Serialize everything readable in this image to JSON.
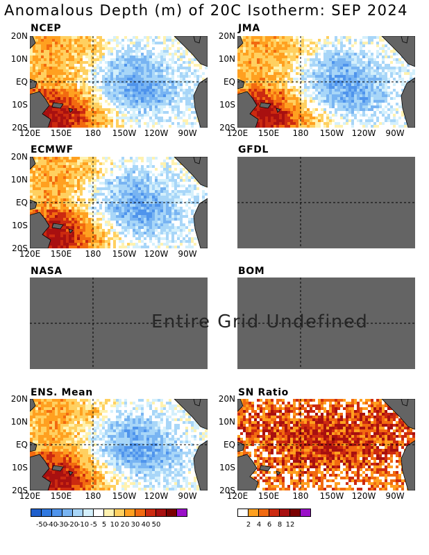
{
  "title": "Anomalous Depth (m) of 20C Isotherm: SEP 2024",
  "undefined_message": "Entire Grid Undefined",
  "lat_labels": [
    "20N",
    "10N",
    "EQ",
    "10S",
    "20S"
  ],
  "lon_labels": [
    "120E",
    "150E",
    "180",
    "150W",
    "120W",
    "90W"
  ],
  "panels": [
    {
      "name": "NCEP",
      "defined": true
    },
    {
      "name": "JMA",
      "defined": true
    },
    {
      "name": "ECMWF",
      "defined": true
    },
    {
      "name": "GFDL",
      "defined": false
    },
    {
      "name": "NASA",
      "defined": false
    },
    {
      "name": "BOM",
      "defined": false
    },
    {
      "name": "ENS. Mean",
      "defined": true
    },
    {
      "name": "SN Ratio",
      "defined": true
    }
  ],
  "anomaly_colorbar": {
    "colors": [
      "#1f5fcc",
      "#2f78e0",
      "#4f94ec",
      "#78b4f2",
      "#a8d6f8",
      "#d4f0fc",
      "#ffffff",
      "#fff2b0",
      "#ffd060",
      "#ffa020",
      "#f26a10",
      "#cc2a10",
      "#a81010",
      "#7a0000",
      "#9a10c8"
    ],
    "labels": [
      "-50",
      "-40",
      "-30",
      "-20",
      "-10",
      "-5",
      "5",
      "10",
      "20",
      "30",
      "40",
      "50"
    ]
  },
  "snr_colorbar": {
    "colors": [
      "#ffffff",
      "#ffa020",
      "#f26a10",
      "#cc2a10",
      "#a81010",
      "#7a0000",
      "#9a10c8"
    ],
    "labels": [
      "2",
      "4",
      "6",
      "8",
      "12"
    ]
  },
  "colors": {
    "land": "#646464",
    "undefined": "#646464"
  }
}
